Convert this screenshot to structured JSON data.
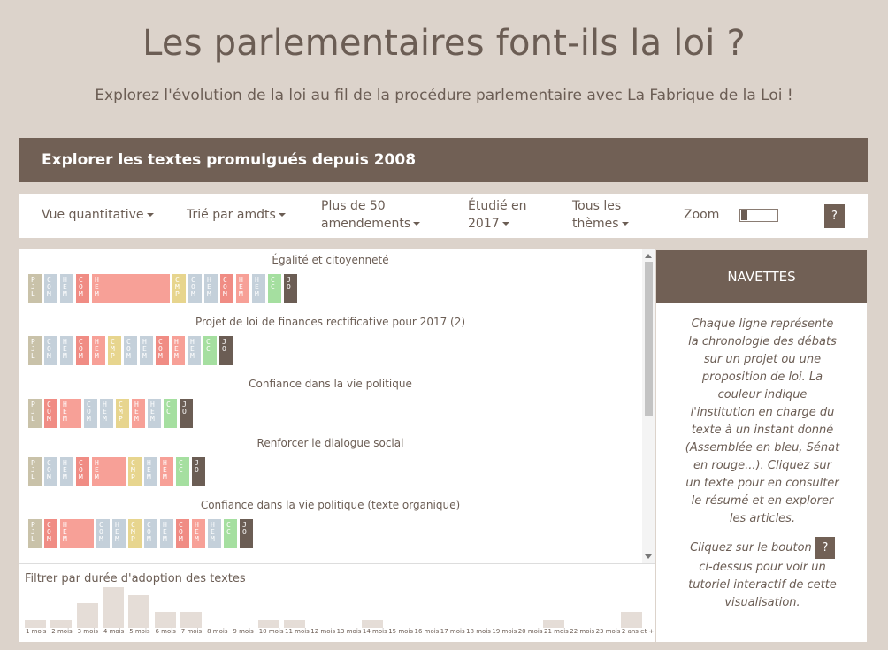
{
  "title": "Les parlementaires font-ils la loi ?",
  "subtitle": "Explorez l'évolution de la loi au fil de la procédure parlementaire avec La Fabrique de la Loi !",
  "banner": "Explorer les textes promulgués depuis 2008",
  "toolbar": {
    "view": "Vue quantitative",
    "sort": "Trié par amdts",
    "filter_amdts_1": "Plus de 50",
    "filter_amdts_2": "amendements",
    "year_1": "Étudié en",
    "year_2": "2017",
    "themes_1": "Tous les",
    "themes_2": "thèmes",
    "zoom": "Zoom",
    "help": "?"
  },
  "colors": {
    "PJL": "#c9c2a9",
    "COM_AN": "#c4d0da",
    "HEM_AN": "#c4d0da",
    "COM_SE": "#f08c84",
    "HEM_SE": "#f7a097",
    "CMP": "#e7d58e",
    "CC": "#a5dfa0",
    "JO": "#6b5d54"
  },
  "laws": [
    {
      "title": "Égalité et citoyenneté",
      "steps": [
        {
          "code": "PJL",
          "kind": "PJL",
          "w": 15
        },
        {
          "code": "COM",
          "kind": "COM_AN",
          "w": 15
        },
        {
          "code": "HEM",
          "kind": "HEM_AN",
          "w": 15
        },
        {
          "code": "COM",
          "kind": "COM_SE",
          "w": 15
        },
        {
          "code": "HEM",
          "kind": "HEM_SE",
          "w": 88
        },
        {
          "code": "CMP",
          "kind": "CMP",
          "w": 15
        },
        {
          "code": "COM",
          "kind": "COM_AN",
          "w": 15
        },
        {
          "code": "HEM",
          "kind": "HEM_AN",
          "w": 15
        },
        {
          "code": "COM",
          "kind": "COM_SE",
          "w": 15
        },
        {
          "code": "HEM",
          "kind": "HEM_SE",
          "w": 15
        },
        {
          "code": "HEM",
          "kind": "HEM_AN",
          "w": 15
        },
        {
          "code": "CC",
          "kind": "CC",
          "w": 15
        },
        {
          "code": "JO",
          "kind": "JO",
          "w": 15
        }
      ]
    },
    {
      "title": "Projet de loi de finances rectificative pour 2017 (2)",
      "steps": [
        {
          "code": "PJL",
          "kind": "PJL",
          "w": 15
        },
        {
          "code": "COM",
          "kind": "COM_AN",
          "w": 15
        },
        {
          "code": "HEM",
          "kind": "HEM_AN",
          "w": 15
        },
        {
          "code": "COM",
          "kind": "COM_SE",
          "w": 15
        },
        {
          "code": "HEM",
          "kind": "HEM_SE",
          "w": 15
        },
        {
          "code": "CMP",
          "kind": "CMP",
          "w": 15
        },
        {
          "code": "COM",
          "kind": "COM_AN",
          "w": 15
        },
        {
          "code": "HEM",
          "kind": "HEM_AN",
          "w": 15
        },
        {
          "code": "COM",
          "kind": "COM_SE",
          "w": 15
        },
        {
          "code": "HEM",
          "kind": "HEM_SE",
          "w": 15
        },
        {
          "code": "HEM",
          "kind": "HEM_AN",
          "w": 15
        },
        {
          "code": "CC",
          "kind": "CC",
          "w": 15
        },
        {
          "code": "JO",
          "kind": "JO",
          "w": 15
        }
      ]
    },
    {
      "title": "Confiance dans la vie politique",
      "steps": [
        {
          "code": "PJL",
          "kind": "PJL",
          "w": 15
        },
        {
          "code": "COM",
          "kind": "COM_SE",
          "w": 15
        },
        {
          "code": "HEM",
          "kind": "HEM_SE",
          "w": 24
        },
        {
          "code": "COM",
          "kind": "COM_AN",
          "w": 15
        },
        {
          "code": "HEM",
          "kind": "HEM_AN",
          "w": 15
        },
        {
          "code": "CMP",
          "kind": "CMP",
          "w": 15
        },
        {
          "code": "HEM",
          "kind": "HEM_SE",
          "w": 15
        },
        {
          "code": "HEM",
          "kind": "HEM_AN",
          "w": 15
        },
        {
          "code": "CC",
          "kind": "CC",
          "w": 15
        },
        {
          "code": "JO",
          "kind": "JO",
          "w": 15
        }
      ]
    },
    {
      "title": "Renforcer le dialogue social",
      "steps": [
        {
          "code": "PJL",
          "kind": "PJL",
          "w": 15
        },
        {
          "code": "COM",
          "kind": "COM_AN",
          "w": 15
        },
        {
          "code": "HEM",
          "kind": "HEM_AN",
          "w": 15
        },
        {
          "code": "COM",
          "kind": "COM_SE",
          "w": 15
        },
        {
          "code": "HEM",
          "kind": "HEM_SE",
          "w": 38
        },
        {
          "code": "CMP",
          "kind": "CMP",
          "w": 15
        },
        {
          "code": "HEM",
          "kind": "HEM_AN",
          "w": 15
        },
        {
          "code": "HEM",
          "kind": "HEM_SE",
          "w": 15
        },
        {
          "code": "CC",
          "kind": "CC",
          "w": 15
        },
        {
          "code": "JO",
          "kind": "JO",
          "w": 15
        }
      ]
    },
    {
      "title": "Confiance dans la vie politique (texte organique)",
      "steps": [
        {
          "code": "PJL",
          "kind": "PJL",
          "w": 15
        },
        {
          "code": "COM",
          "kind": "COM_SE",
          "w": 15
        },
        {
          "code": "HEM",
          "kind": "HEM_SE",
          "w": 38
        },
        {
          "code": "COM",
          "kind": "COM_AN",
          "w": 15
        },
        {
          "code": "HEM",
          "kind": "HEM_AN",
          "w": 15
        },
        {
          "code": "CMP",
          "kind": "CMP",
          "w": 15
        },
        {
          "code": "COM",
          "kind": "COM_AN",
          "w": 15
        },
        {
          "code": "HEM",
          "kind": "HEM_AN",
          "w": 15
        },
        {
          "code": "COM",
          "kind": "COM_SE",
          "w": 15
        },
        {
          "code": "HEM",
          "kind": "HEM_SE",
          "w": 15
        },
        {
          "code": "HEM",
          "kind": "HEM_AN",
          "w": 15
        },
        {
          "code": "CC",
          "kind": "CC",
          "w": 15
        },
        {
          "code": "JO",
          "kind": "JO",
          "w": 15
        }
      ]
    }
  ],
  "filter": {
    "title": "Filtrer par durée d'adoption des textes",
    "labels": [
      "1 mois",
      "2 mois",
      "3 mois",
      "4 mois",
      "5 mois",
      "6 mois",
      "7 mois",
      "8 mois",
      "9 mois",
      "10 mois",
      "11 mois",
      "12 mois",
      "13 mois",
      "14 mois",
      "15 mois",
      "16 mois",
      "17 mois",
      "18 mois",
      "19 mois",
      "20 mois",
      "21 mois",
      "22 mois",
      "23 mois",
      "2 ans et +"
    ],
    "counts": [
      2,
      2,
      6,
      10,
      8,
      4,
      4,
      0,
      0,
      2,
      2,
      0,
      0,
      2,
      0,
      0,
      0,
      0,
      0,
      0,
      2,
      0,
      0,
      4
    ]
  },
  "side": {
    "header": "NAVETTES",
    "text": "Chaque ligne représente la chronologie des débats sur un projet ou une proposition de loi. La couleur indique l'institution en charge du texte à un instant donné (Assemblée en bleu, Sénat en rouge...). Cliquez sur un texte pour en consulter le résumé et en explorer les articles.",
    "text2_before": "Cliquez sur le bouton",
    "help": "?",
    "text2_after": "ci-dessus pour voir un tutoriel interactif de cette visualisation."
  }
}
